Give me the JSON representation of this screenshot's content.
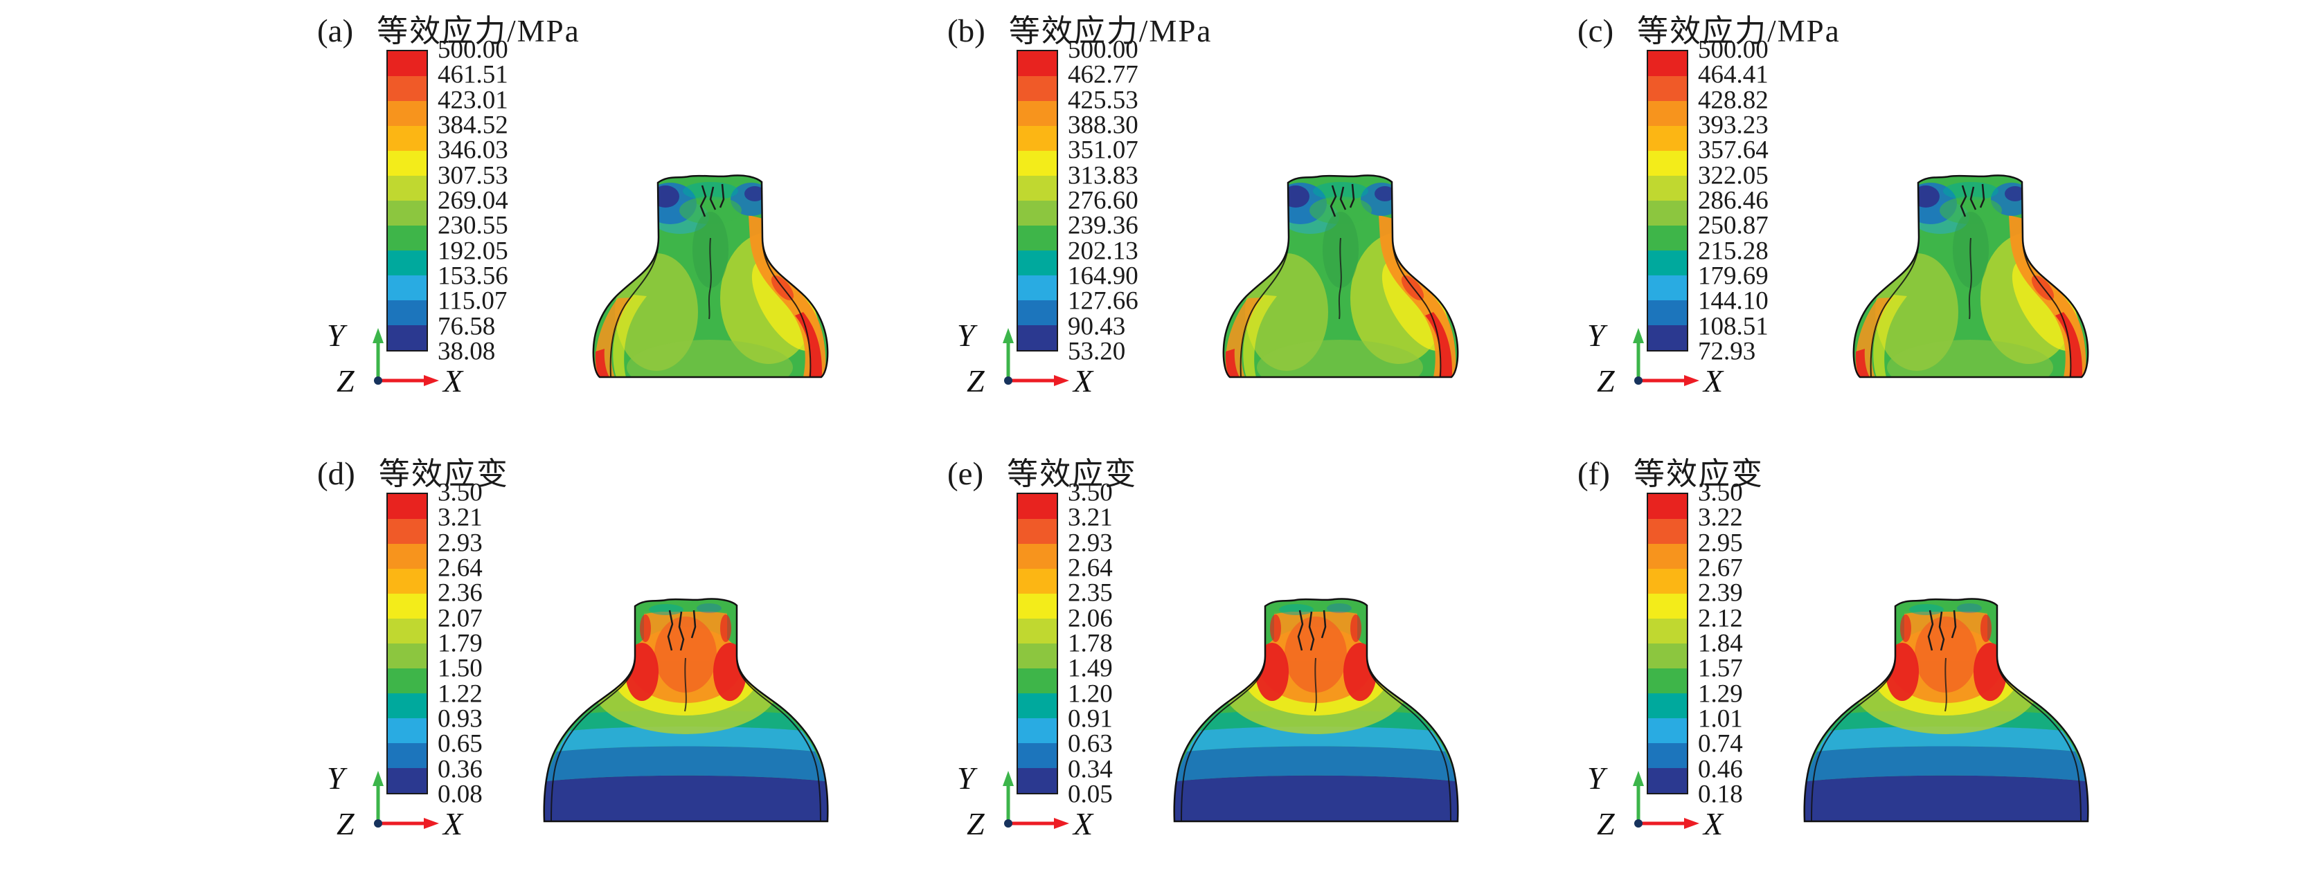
{
  "figure": {
    "axes": {
      "x": "X",
      "y": "Y",
      "z": "Z"
    },
    "band_colors": [
      "#e8231f",
      "#f05a28",
      "#f7941d",
      "#fcb614",
      "#f3ec1a",
      "#c0d830",
      "#8cc63f",
      "#3eb549",
      "#00a99d",
      "#29abe2",
      "#1c75bc",
      "#2b3990"
    ],
    "panels": [
      {
        "label": "(a)",
        "title": "等效应力/MPa",
        "shape": "stress",
        "ticks": [
          "500.00",
          "461.51",
          "423.01",
          "384.52",
          "346.03",
          "307.53",
          "269.04",
          "230.55",
          "192.05",
          "153.56",
          "115.07",
          "76.58",
          "38.08"
        ]
      },
      {
        "label": "(b)",
        "title": "等效应力/MPa",
        "shape": "stress",
        "ticks": [
          "500.00",
          "462.77",
          "425.53",
          "388.30",
          "351.07",
          "313.83",
          "276.60",
          "239.36",
          "202.13",
          "164.90",
          "127.66",
          "90.43",
          "53.20"
        ]
      },
      {
        "label": "(c)",
        "title": "等效应力/MPa",
        "shape": "stress",
        "ticks": [
          "500.00",
          "464.41",
          "428.82",
          "393.23",
          "357.64",
          "322.05",
          "286.46",
          "250.87",
          "215.28",
          "179.69",
          "144.10",
          "108.51",
          "72.93"
        ]
      },
      {
        "label": "(d)",
        "title": "等效应变",
        "shape": "strain",
        "ticks": [
          "3.50",
          "3.21",
          "2.93",
          "2.64",
          "2.36",
          "2.07",
          "1.79",
          "1.50",
          "1.22",
          "0.93",
          "0.65",
          "0.36",
          "0.08"
        ]
      },
      {
        "label": "(e)",
        "title": "等效应变",
        "shape": "strain",
        "ticks": [
          "3.50",
          "3.21",
          "2.93",
          "2.64",
          "2.35",
          "2.06",
          "1.78",
          "1.49",
          "1.20",
          "0.91",
          "0.63",
          "0.34",
          "0.05"
        ]
      },
      {
        "label": "(f)",
        "title": "等效应变",
        "shape": "strain",
        "ticks": [
          "3.50",
          "3.22",
          "2.95",
          "2.67",
          "2.39",
          "2.12",
          "1.84",
          "1.57",
          "1.29",
          "1.01",
          "0.74",
          "0.46",
          "0.18"
        ]
      }
    ]
  },
  "chart_data": [
    {
      "type": "heatmap",
      "panel": "(a)",
      "title": "等效应力/MPa",
      "legend_values": [
        500.0,
        461.51,
        423.01,
        384.52,
        346.03,
        307.53,
        269.04,
        230.55,
        192.05,
        153.56,
        115.07,
        76.58,
        38.08
      ],
      "legend_colors": [
        "#e8231f",
        "#f05a28",
        "#f7941d",
        "#fcb614",
        "#f3ec1a",
        "#c0d830",
        "#8cc63f",
        "#3eb549",
        "#00a99d",
        "#29abe2",
        "#1c75bc",
        "#2b3990"
      ],
      "value_range": [
        38.08,
        500.0
      ],
      "legend_position": "left"
    },
    {
      "type": "heatmap",
      "panel": "(b)",
      "title": "等效应力/MPa",
      "legend_values": [
        500.0,
        462.77,
        425.53,
        388.3,
        351.07,
        313.83,
        276.6,
        239.36,
        202.13,
        164.9,
        127.66,
        90.43,
        53.2
      ],
      "legend_colors": [
        "#e8231f",
        "#f05a28",
        "#f7941d",
        "#fcb614",
        "#f3ec1a",
        "#c0d830",
        "#8cc63f",
        "#3eb549",
        "#00a99d",
        "#29abe2",
        "#1c75bc",
        "#2b3990"
      ],
      "value_range": [
        53.2,
        500.0
      ],
      "legend_position": "left"
    },
    {
      "type": "heatmap",
      "panel": "(c)",
      "title": "等效应力/MPa",
      "legend_values": [
        500.0,
        464.41,
        428.82,
        393.23,
        357.64,
        322.05,
        286.46,
        250.87,
        215.28,
        179.69,
        144.1,
        108.51,
        72.93
      ],
      "legend_colors": [
        "#e8231f",
        "#f05a28",
        "#f7941d",
        "#fcb614",
        "#f3ec1a",
        "#c0d830",
        "#8cc63f",
        "#3eb549",
        "#00a99d",
        "#29abe2",
        "#1c75bc",
        "#2b3990"
      ],
      "value_range": [
        72.93,
        500.0
      ],
      "legend_position": "left"
    },
    {
      "type": "heatmap",
      "panel": "(d)",
      "title": "等效应变",
      "legend_values": [
        3.5,
        3.21,
        2.93,
        2.64,
        2.36,
        2.07,
        1.79,
        1.5,
        1.22,
        0.93,
        0.65,
        0.36,
        0.08
      ],
      "legend_colors": [
        "#e8231f",
        "#f05a28",
        "#f7941d",
        "#fcb614",
        "#f3ec1a",
        "#c0d830",
        "#8cc63f",
        "#3eb549",
        "#00a99d",
        "#29abe2",
        "#1c75bc",
        "#2b3990"
      ],
      "value_range": [
        0.08,
        3.5
      ],
      "legend_position": "left"
    },
    {
      "type": "heatmap",
      "panel": "(e)",
      "title": "等效应变",
      "legend_values": [
        3.5,
        3.21,
        2.93,
        2.64,
        2.35,
        2.06,
        1.78,
        1.49,
        1.2,
        0.91,
        0.63,
        0.34,
        0.05
      ],
      "legend_colors": [
        "#e8231f",
        "#f05a28",
        "#f7941d",
        "#fcb614",
        "#f3ec1a",
        "#c0d830",
        "#8cc63f",
        "#3eb549",
        "#00a99d",
        "#29abe2",
        "#1c75bc",
        "#2b3990"
      ],
      "value_range": [
        0.05,
        3.5
      ],
      "legend_position": "left"
    },
    {
      "type": "heatmap",
      "panel": "(f)",
      "title": "等效应变",
      "legend_values": [
        3.5,
        3.22,
        2.95,
        2.67,
        2.39,
        2.12,
        1.84,
        1.57,
        1.29,
        1.01,
        0.74,
        0.46,
        0.18
      ],
      "legend_colors": [
        "#e8231f",
        "#f05a28",
        "#f7941d",
        "#fcb614",
        "#f3ec1a",
        "#c0d830",
        "#8cc63f",
        "#3eb549",
        "#00a99d",
        "#29abe2",
        "#1c75bc",
        "#2b3990"
      ],
      "value_range": [
        0.18,
        3.5
      ],
      "legend_position": "left"
    }
  ]
}
